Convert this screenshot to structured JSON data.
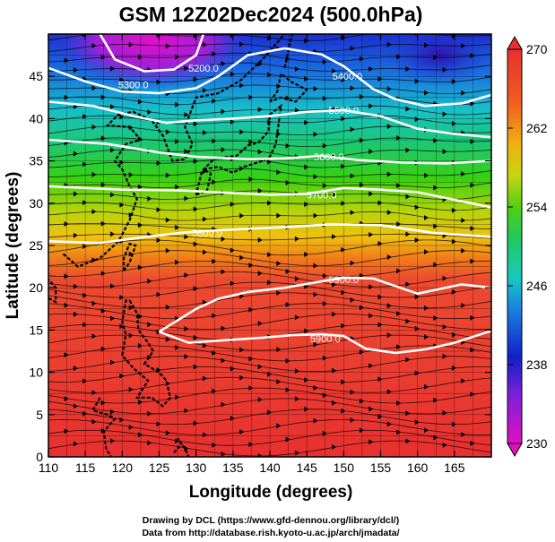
{
  "title": "GSM 12Z02Dec2024 (500.0hPa)",
  "chart_data": {
    "type": "heatmap",
    "xlabel": "Longitude (degrees)",
    "ylabel": "Latitude  (degrees)",
    "xlim": [
      110,
      170
    ],
    "ylim": [
      0,
      50
    ],
    "x_ticks": [
      "110",
      "115",
      "120",
      "125",
      "130",
      "135",
      "140",
      "145",
      "150",
      "155",
      "160",
      "165"
    ],
    "y_ticks": [
      "0",
      "5",
      "10",
      "15",
      "20",
      "25",
      "30",
      "35",
      "40",
      "45"
    ],
    "colorbar": {
      "min": 230,
      "max": 270,
      "tick_labels": [
        "230",
        "238",
        "246",
        "254",
        "262",
        "270"
      ],
      "tick_values": [
        230,
        238,
        246,
        254,
        262,
        270
      ]
    },
    "contours": [
      {
        "label": "5200.0",
        "lon": 131,
        "lat": 46
      },
      {
        "label": "5300.0",
        "lon": 121.5,
        "lat": 44
      },
      {
        "label": "5400.0",
        "lon": 150.5,
        "lat": 45
      },
      {
        "label": "5500.0",
        "lon": 150,
        "lat": 41
      },
      {
        "label": "5600.0",
        "lon": 148,
        "lat": 35.5
      },
      {
        "label": "5700.0",
        "lon": 147,
        "lat": 31
      },
      {
        "label": "5800.0",
        "lon": 131.5,
        "lat": 26.5
      },
      {
        "label": "5900.0",
        "lon": 150,
        "lat": 21
      },
      {
        "label": "5900.0",
        "lon": 147.5,
        "lat": 14
      }
    ]
  },
  "credits": {
    "line1": "Drawing by DCL (https://www.gfd-dennou.org/library/dcl/)",
    "line2": "Data from http://database.rish.kyoto-u.ac.jp/arch/jmadata/"
  }
}
